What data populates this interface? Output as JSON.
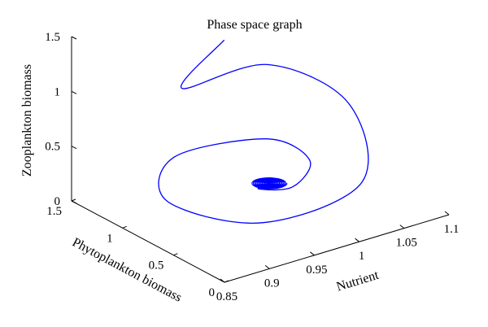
{
  "chart_data": {
    "type": "line",
    "projection": "3d",
    "title": "Phase space graph",
    "xlabel": "Nutrient",
    "ylabel": "Phytoplankton biomass",
    "zlabel": "Zooplankton biomass",
    "xlim": [
      0.85,
      1.1
    ],
    "ylim": [
      0,
      1.5
    ],
    "zlim": [
      0,
      1.5
    ],
    "xticks": [
      "0.85",
      "0.9",
      "0.95",
      "1",
      "1.05",
      "1.1"
    ],
    "yticks": [
      "0",
      "0.5",
      "1",
      "1.5"
    ],
    "zticks": [
      "0",
      "0.5",
      "1",
      "1.5"
    ],
    "grid": false,
    "series": [
      {
        "color": "#0000ff",
        "description": "spiral trajectory converging to an equilibrium",
        "points": [
          {
            "x": 1.02,
            "y": 1.5,
            "z": 1.05
          },
          {
            "x": 0.95,
            "y": 1.3,
            "z": 0.88
          },
          {
            "x": 1.04,
            "y": 1.25,
            "z": 0.9
          },
          {
            "x": 1.09,
            "y": 0.9,
            "z": 0.6
          },
          {
            "x": 1.06,
            "y": 0.5,
            "z": 0.15
          },
          {
            "x": 0.95,
            "y": 0.5,
            "z": 0.05
          },
          {
            "x": 0.9,
            "y": 1.0,
            "z": 0.12
          },
          {
            "x": 0.93,
            "y": 1.2,
            "z": 0.35
          },
          {
            "x": 1.01,
            "y": 1.0,
            "z": 0.42
          },
          {
            "x": 1.03,
            "y": 0.75,
            "z": 0.3
          },
          {
            "x": 1.0,
            "y": 0.65,
            "z": 0.18
          },
          {
            "x": 0.97,
            "y": 0.72,
            "z": 0.2
          },
          {
            "x": 0.985,
            "y": 0.75,
            "z": 0.2
          }
        ]
      }
    ]
  }
}
